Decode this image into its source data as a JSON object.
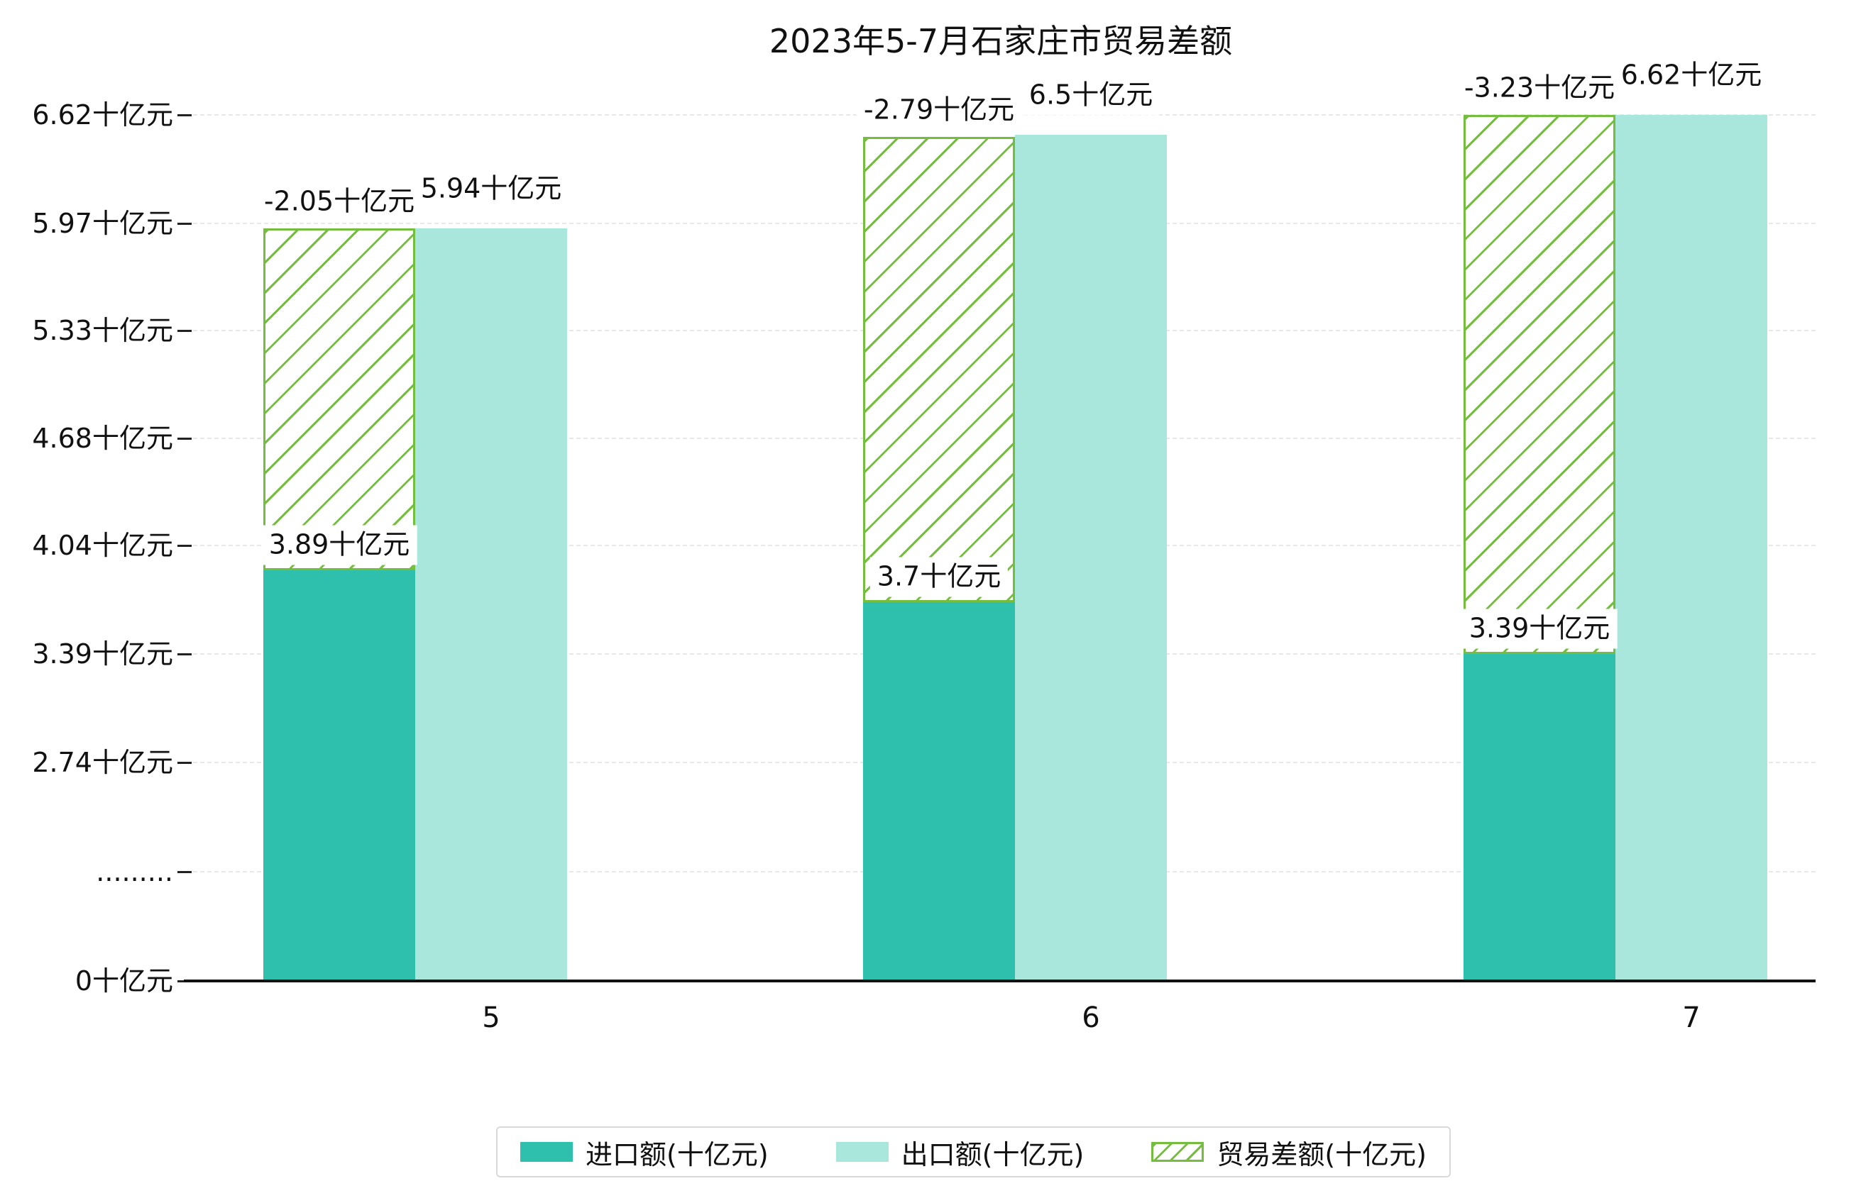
{
  "title": "2023年5-7月石家庄市贸易差额",
  "chart_data": {
    "type": "bar",
    "title": "2023年5-7月石家庄市贸易差额",
    "categories": [
      "5",
      "6",
      "7"
    ],
    "series": [
      {
        "name": "进口额(十亿元)",
        "color": "#2fc0ad",
        "values": [
          3.89,
          3.7,
          3.39
        ],
        "labels": [
          "3.89十亿元",
          "3.7十亿元",
          "3.39十亿元"
        ]
      },
      {
        "name": "出口额(十亿元)",
        "color": "#a9e7dc",
        "values": [
          5.94,
          6.5,
          6.62
        ],
        "labels": [
          "5.94十亿元",
          "6.5十亿元",
          "6.62十亿元"
        ]
      },
      {
        "name": "贸易差额(十亿元)",
        "color": "#74bd3e",
        "hatch": "/",
        "values": [
          -2.05,
          -2.79,
          -3.23
        ],
        "labels": [
          "-2.05十亿元",
          "-2.79十亿元",
          "-3.23十亿元"
        ]
      }
    ],
    "yticks": [
      {
        "value": 6.62,
        "label": "6.62十亿元"
      },
      {
        "value": 5.97,
        "label": "5.97十亿元"
      },
      {
        "value": 5.33,
        "label": "5.33十亿元"
      },
      {
        "value": 4.68,
        "label": "4.68十亿元"
      },
      {
        "value": 4.04,
        "label": "4.04十亿元"
      },
      {
        "value": 3.39,
        "label": "3.39十亿元"
      },
      {
        "value": 2.74,
        "label": "2.74十亿元"
      },
      {
        "value": null,
        "label": "........."
      },
      {
        "value": 0,
        "label": "0十亿元"
      }
    ],
    "axis_break": true,
    "grid": "dashed-horizontal",
    "legend_position": "bottom-center",
    "unit": "十亿元"
  }
}
